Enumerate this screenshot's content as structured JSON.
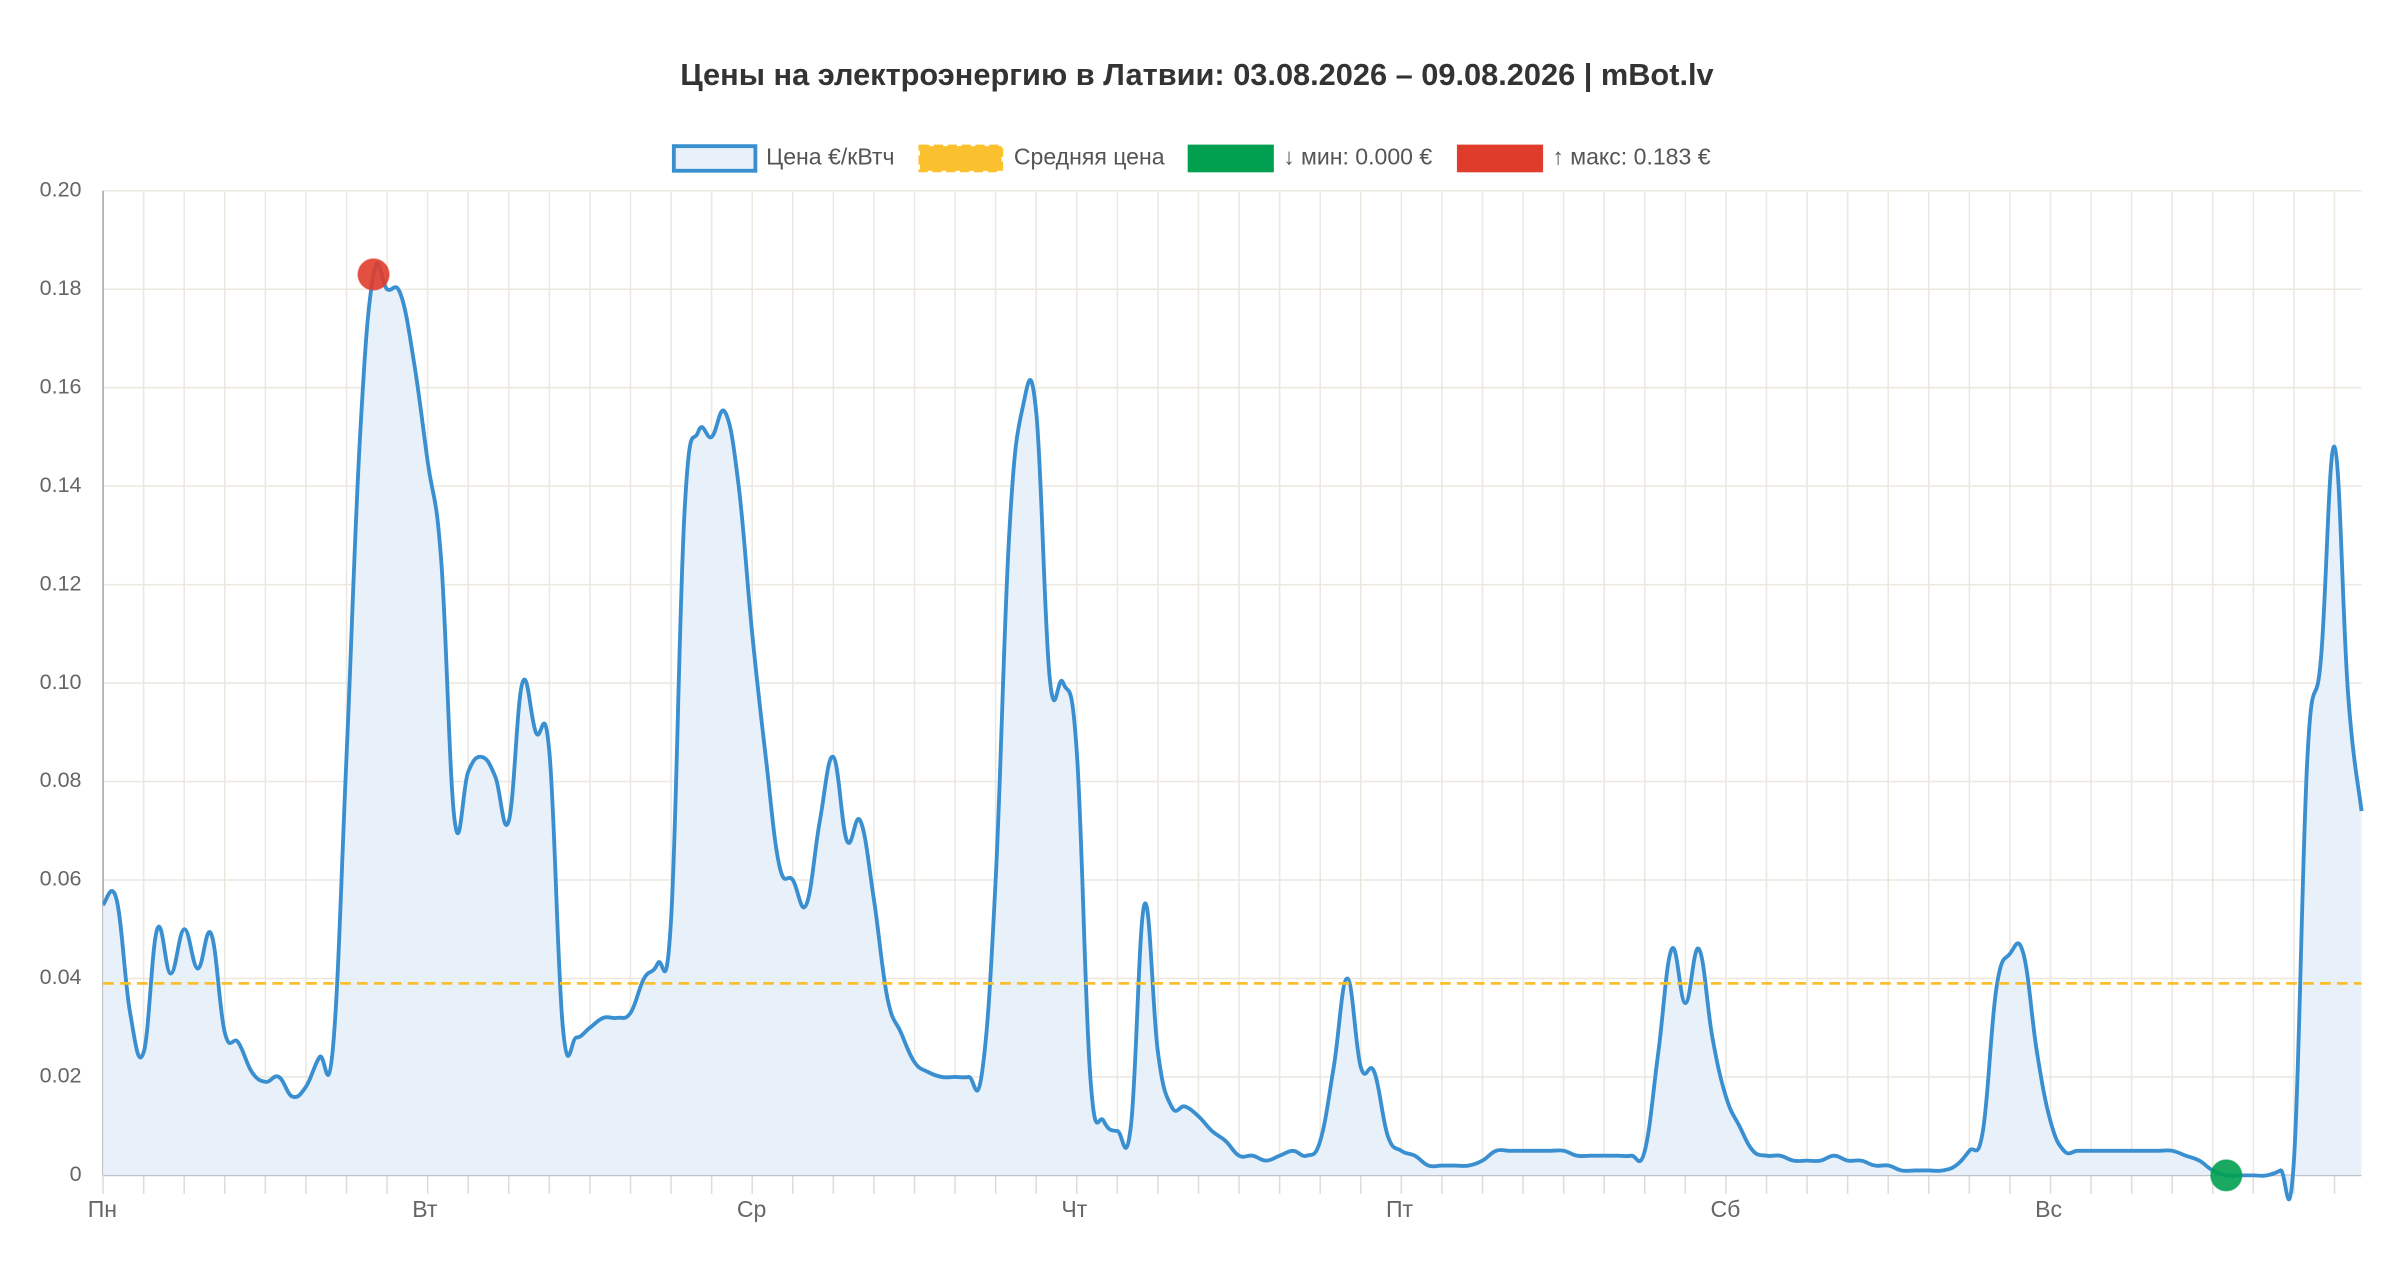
{
  "chart_data": {
    "type": "line",
    "title": "Цены на электроэнергию в Латвии: 03.08.2026 – 09.08.2026 | mBot.lv",
    "categories": [
      "Пн",
      null,
      null,
      null,
      null,
      null,
      null,
      null,
      null,
      null,
      null,
      null,
      null,
      null,
      null,
      null,
      null,
      null,
      null,
      null,
      null,
      null,
      null,
      null,
      "Вт",
      null,
      null,
      null,
      null,
      null,
      null,
      null,
      null,
      null,
      null,
      null,
      null,
      null,
      null,
      null,
      null,
      null,
      null,
      null,
      null,
      null,
      null,
      null,
      "Ср",
      null,
      null,
      null,
      null,
      null,
      null,
      null,
      null,
      null,
      null,
      null,
      null,
      null,
      null,
      null,
      null,
      null,
      null,
      null,
      null,
      null,
      null,
      null,
      "Чт",
      null,
      null,
      null,
      null,
      null,
      null,
      null,
      null,
      null,
      null,
      null,
      null,
      null,
      null,
      null,
      null,
      null,
      null,
      null,
      null,
      null,
      null,
      null,
      "Пт",
      null,
      null,
      null,
      null,
      null,
      null,
      null,
      null,
      null,
      null,
      null,
      null,
      null,
      null,
      null,
      null,
      null,
      null,
      null,
      null,
      null,
      null,
      null,
      "Сб",
      null,
      null,
      null,
      null,
      null,
      null,
      null,
      null,
      null,
      null,
      null,
      null,
      null,
      null,
      null,
      null,
      null,
      null,
      null,
      null,
      null,
      null,
      null,
      "Вс",
      null,
      null,
      null,
      null,
      null,
      null,
      null,
      null,
      null,
      null,
      null,
      null,
      null,
      null,
      null,
      null,
      null,
      null,
      null,
      null,
      null,
      null,
      null
    ],
    "series": [
      {
        "name": "Цена €/кВтч",
        "color": "#3a8fd0",
        "fill": "#e8f1fa",
        "values": [
          0.055,
          0.056,
          0.033,
          0.025,
          0.05,
          0.041,
          0.05,
          0.042,
          0.049,
          0.029,
          0.027,
          0.021,
          0.019,
          0.02,
          0.016,
          0.018,
          0.024,
          0.026,
          0.085,
          0.15,
          0.183,
          0.18,
          0.179,
          0.165,
          0.145,
          0.125,
          0.072,
          0.082,
          0.085,
          0.081,
          0.072,
          0.1,
          0.09,
          0.086,
          0.03,
          0.028,
          0.03,
          0.032,
          0.032,
          0.033,
          0.04,
          0.043,
          0.052,
          0.135,
          0.151,
          0.15,
          0.155,
          0.14,
          0.11,
          0.085,
          0.063,
          0.06,
          0.055,
          0.072,
          0.085,
          0.068,
          0.072,
          0.056,
          0.036,
          0.029,
          0.023,
          0.021,
          0.02,
          0.02,
          0.02,
          0.021,
          0.06,
          0.13,
          0.156,
          0.155,
          0.101,
          0.1,
          0.086,
          0.02,
          0.011,
          0.009,
          0.01,
          0.055,
          0.025,
          0.014,
          0.014,
          0.012,
          0.009,
          0.007,
          0.004,
          0.004,
          0.003,
          0.004,
          0.005,
          0.004,
          0.007,
          0.022,
          0.04,
          0.022,
          0.021,
          0.008,
          0.005,
          0.004,
          0.002,
          0.002,
          0.002,
          0.002,
          0.003,
          0.005,
          0.005,
          0.005,
          0.005,
          0.005,
          0.005,
          0.004,
          0.004,
          0.004,
          0.004,
          0.004,
          0.005,
          0.025,
          0.046,
          0.035,
          0.046,
          0.028,
          0.016,
          0.01,
          0.005,
          0.004,
          0.004,
          0.003,
          0.003,
          0.003,
          0.004,
          0.003,
          0.003,
          0.002,
          0.002,
          0.001,
          0.001,
          0.001,
          0.001,
          0.002,
          0.005,
          0.009,
          0.038,
          0.045,
          0.045,
          0.025,
          0.011,
          0.005,
          0.005,
          0.005,
          0.005,
          0.005,
          0.005,
          0.005,
          0.005,
          0.005,
          0.004,
          0.003,
          0.001,
          0.0,
          0.0,
          0.0,
          0.0,
          0.001,
          0.003,
          0.085,
          0.105,
          0.148,
          0.098,
          0.074
        ]
      }
    ],
    "average": {
      "name": "Средняя цена",
      "color": "#fbc02d",
      "value": 0.039
    },
    "min_marker": {
      "name": "↓ мин: 0.000 €",
      "color": "#00a050",
      "value": 0
    },
    "max_marker": {
      "name": "↑ макс: 0.183 €",
      "color": "#e03c2c",
      "value": 0.183
    },
    "ylim": [
      0,
      0.2
    ],
    "yticks": [
      0,
      {
        "value": 0.02,
        "label": "0.02"
      },
      {
        "value": 0.04,
        "label": "0.04"
      },
      {
        "value": 0.06,
        "label": "0.06"
      },
      {
        "value": 0.08,
        "label": "0.08"
      },
      {
        "value": 0.1,
        "label": "0.10"
      },
      {
        "value": 0.12,
        "label": "0.12"
      },
      {
        "value": 0.14,
        "label": "0.14"
      },
      {
        "value": 0.16,
        "label": "0.16"
      },
      {
        "value": 0.18,
        "label": "0.18"
      },
      {
        "value": 0.2,
        "label": "0.20"
      }
    ],
    "grid": true
  }
}
